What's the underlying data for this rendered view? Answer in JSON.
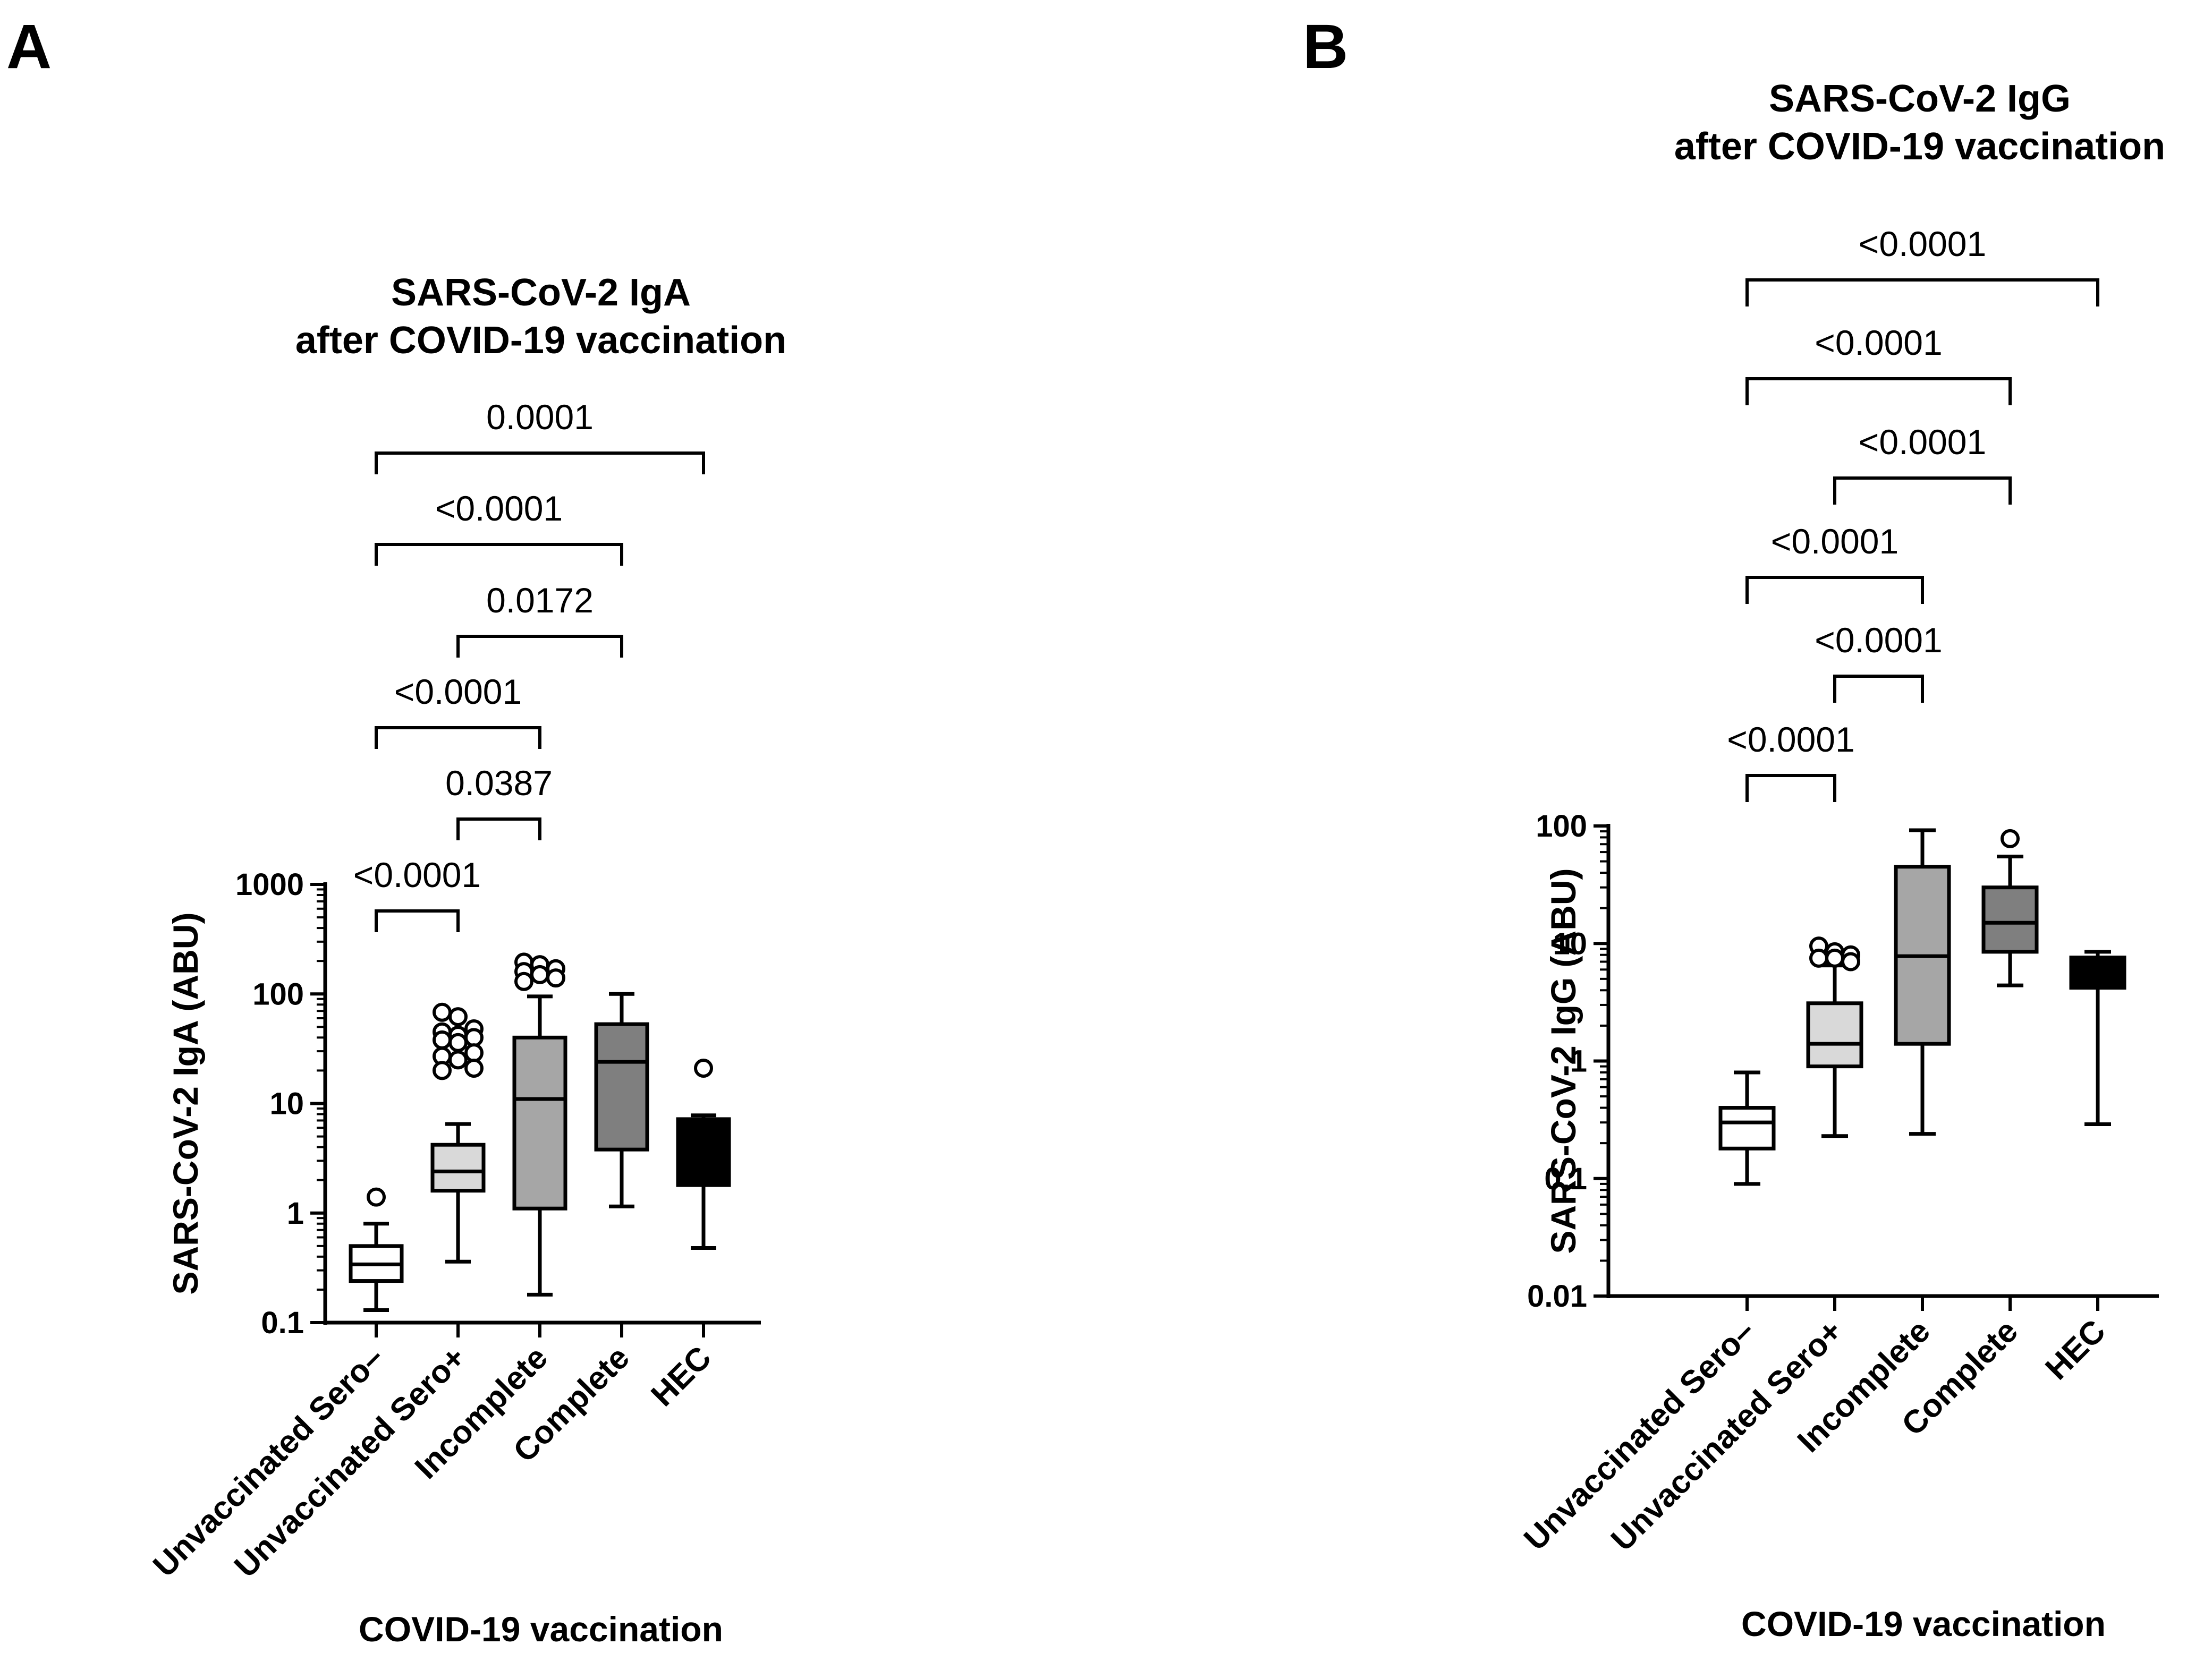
{
  "chart_data": [
    {
      "panel": "A",
      "type": "box",
      "title_lines": [
        "SARS-CoV-2 IgA",
        "after COVID-19 vaccination"
      ],
      "ylabel": "SARS-CoV-2 IgA (ABU)",
      "xlabel": "COVID-19 vaccination",
      "yscale": "log",
      "ylim": [
        0.1,
        1000
      ],
      "yticks": [
        "0.1",
        "1",
        "10",
        "100",
        "1000"
      ],
      "categories": [
        "Unvaccinated Sero–",
        "Unvaccinated Sero+",
        "Incomplete",
        "Complete",
        "HEC"
      ],
      "boxes": [
        {
          "category": "Unvaccinated Sero–",
          "min": 0.13,
          "q1": 0.24,
          "median": 0.34,
          "q3": 0.5,
          "max": 0.8,
          "fill": "#ffffff",
          "median_color": "#000000",
          "outliers": [
            1.4
          ]
        },
        {
          "category": "Unvaccinated Sero+",
          "min": 0.36,
          "q1": 1.6,
          "median": 2.4,
          "q3": 4.2,
          "max": 6.5,
          "fill": "#d9d9d9",
          "median_color": "#000000",
          "outliers": [
            68,
            62,
            48,
            45,
            42,
            40,
            38,
            36,
            29,
            27,
            25,
            21,
            20
          ]
        },
        {
          "category": "Incomplete",
          "min": 0.18,
          "q1": 1.1,
          "median": 11,
          "q3": 40,
          "max": 95,
          "fill": "#a6a6a6",
          "median_color": "#000000",
          "outliers": [
            195,
            185,
            170,
            160,
            150,
            140,
            130
          ]
        },
        {
          "category": "Complete",
          "min": 1.15,
          "q1": 3.8,
          "median": 24,
          "q3": 53,
          "max": 100,
          "fill": "#7f7f7f",
          "median_color": "#000000",
          "outliers": []
        },
        {
          "category": "HEC",
          "min": 0.48,
          "q1": 1.8,
          "median": 6.5,
          "q3": 7.2,
          "max": 7.8,
          "fill": "#000000",
          "median_color": "#000000",
          "outliers": [
            21
          ]
        }
      ],
      "comparisons": [
        {
          "from": "Unvaccinated Sero–",
          "to": "Unvaccinated Sero+",
          "p": "<0.0001"
        },
        {
          "from": "Unvaccinated Sero+",
          "to": "Incomplete",
          "p": "0.0387"
        },
        {
          "from": "Unvaccinated Sero–",
          "to": "Incomplete",
          "p": "<0.0001"
        },
        {
          "from": "Unvaccinated Sero+",
          "to": "Complete",
          "p": "0.0172"
        },
        {
          "from": "Unvaccinated Sero–",
          "to": "Complete",
          "p": "<0.0001"
        },
        {
          "from": "Unvaccinated Sero–",
          "to": "HEC",
          "p": "0.0001"
        }
      ]
    },
    {
      "panel": "B",
      "type": "box",
      "title_lines": [
        "SARS-CoV-2 IgG",
        "after COVID-19 vaccination"
      ],
      "ylabel": "SARS-CoV-2 IgG (ABU)",
      "xlabel": "COVID-19 vaccination",
      "yscale": "log",
      "ylim": [
        0.01,
        100
      ],
      "yticks": [
        "0.01",
        "0.1",
        "1",
        "10",
        "100"
      ],
      "categories": [
        "Unvaccinated Sero–",
        "Unvaccinated Sero+",
        "Incomplete",
        "Complete",
        "HEC"
      ],
      "boxes": [
        {
          "category": "Unvaccinated Sero–",
          "min": 0.09,
          "q1": 0.18,
          "median": 0.3,
          "q3": 0.4,
          "max": 0.8,
          "fill": "#ffffff",
          "median_color": "#000000",
          "outliers": []
        },
        {
          "category": "Unvaccinated Sero+",
          "min": 0.23,
          "q1": 0.9,
          "median": 1.4,
          "q3": 3.1,
          "max": 6.5,
          "fill": "#d9d9d9",
          "median_color": "#000000",
          "outliers": [
            9.5,
            8.5,
            8,
            7.5,
            7.5,
            7
          ]
        },
        {
          "category": "Incomplete",
          "min": 0.24,
          "q1": 1.4,
          "median": 7.8,
          "q3": 45,
          "max": 92,
          "fill": "#a6a6a6",
          "median_color": "#000000",
          "outliers": []
        },
        {
          "category": "Complete",
          "min": 4.4,
          "q1": 8.5,
          "median": 15,
          "q3": 30,
          "max": 55,
          "fill": "#7f7f7f",
          "median_color": "#000000",
          "outliers": [
            78
          ]
        },
        {
          "category": "HEC",
          "min": 0.29,
          "q1": 4.2,
          "median": 7.2,
          "q3": 7.6,
          "max": 8.5,
          "fill": "#000000",
          "median_color": "#000000",
          "outliers": []
        }
      ],
      "comparisons": [
        {
          "from": "Unvaccinated Sero–",
          "to": "Unvaccinated Sero+",
          "p": "<0.0001"
        },
        {
          "from": "Unvaccinated Sero+",
          "to": "Incomplete",
          "p": "<0.0001"
        },
        {
          "from": "Unvaccinated Sero–",
          "to": "Incomplete",
          "p": "<0.0001"
        },
        {
          "from": "Unvaccinated Sero+",
          "to": "Complete",
          "p": "<0.0001"
        },
        {
          "from": "Unvaccinated Sero–",
          "to": "Complete",
          "p": "<0.0001"
        },
        {
          "from": "Unvaccinated Sero–",
          "to": "HEC",
          "p": "<0.0001"
        }
      ]
    }
  ]
}
